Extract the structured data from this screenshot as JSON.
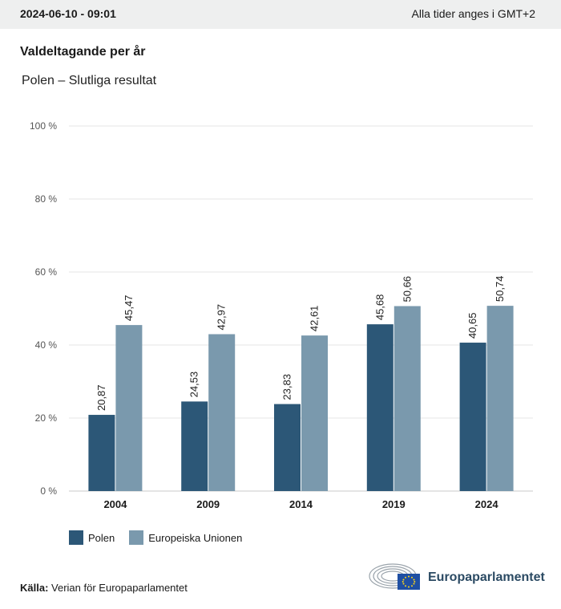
{
  "header": {
    "timestamp": "2024-06-10 - 09:01",
    "timezone_note": "Alla tider anges i GMT+2"
  },
  "title": "Valdeltagande per år",
  "subtitle": "Polen – Slutliga resultat",
  "colors": {
    "polen": "#2c5777",
    "eu": "#7a99ad",
    "grid": "#e6e6e6",
    "axis": "#c8c8c8"
  },
  "chart_data": {
    "type": "bar",
    "categories": [
      "2004",
      "2009",
      "2014",
      "2019",
      "2024"
    ],
    "series": [
      {
        "name": "Polen",
        "values": [
          20.87,
          24.53,
          23.83,
          45.68,
          40.65
        ],
        "labels": [
          "20,87",
          "24,53",
          "23,83",
          "45,68",
          "40,65"
        ]
      },
      {
        "name": "Europeiska Unionen",
        "values": [
          45.47,
          42.97,
          42.61,
          50.66,
          50.74
        ],
        "labels": [
          "45,47",
          "42,97",
          "42,61",
          "50,66",
          "50,74"
        ]
      }
    ],
    "ylim": [
      0,
      100
    ],
    "yticks": [
      0,
      20,
      40,
      60,
      80,
      100
    ],
    "ytick_labels": [
      "0 %",
      "20 %",
      "40 %",
      "60 %",
      "80 %",
      "100 %"
    ],
    "grid": true,
    "legend": "bottom-left"
  },
  "legend": {
    "polen": "Polen",
    "eu": "Europeiska Unionen"
  },
  "source": {
    "label": "Källa:",
    "text": "Verian för Europaparlamentet"
  },
  "logo": {
    "text": "Europaparlamentet"
  }
}
